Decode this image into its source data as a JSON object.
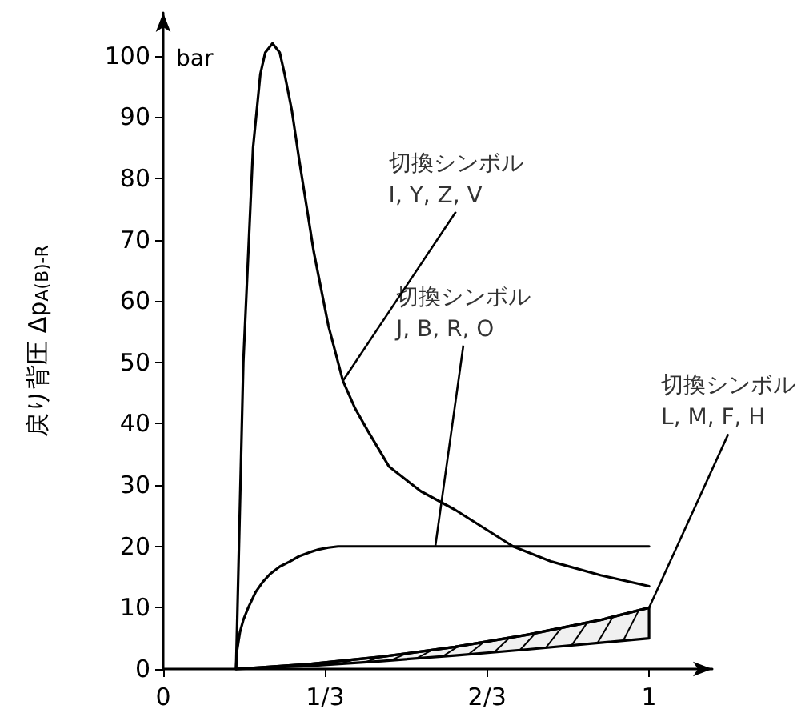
{
  "chart_data": {
    "type": "line",
    "ylabel": "戻り背圧 Δp$_{A(B)-R}$",
    "xlim": [
      0,
      1.13
    ],
    "xticks": [
      0,
      {
        "value": 0.3333,
        "label": "1/3"
      },
      {
        "value": 0.6667,
        "label": "2/3"
      },
      1
    ],
    "ylim": [
      0,
      107
    ],
    "yticks": [
      0,
      10,
      20,
      30,
      40,
      50,
      60,
      70,
      80,
      90,
      100
    ],
    "grid": false,
    "marker": "none",
    "line_style": "solid",
    "series": [
      {
        "color": "#000000",
        "x": [
          0.15,
          0.165,
          0.185,
          0.2,
          0.21,
          0.225,
          0.24,
          0.25,
          0.265,
          0.28,
          0.31,
          0.34,
          0.37,
          0.395,
          0.42,
          0.465,
          0.53,
          0.6,
          0.66,
          0.72,
          0.8,
          0.9,
          1
        ],
        "values": [
          0,
          50,
          85,
          97,
          100.5,
          102,
          100.5,
          97,
          91,
          83,
          68,
          56,
          47,
          42.5,
          39,
          33,
          29,
          26,
          23,
          20,
          17.5,
          15.3,
          13.5
        ]
      },
      {
        "color": "#000000",
        "x": [
          0.15,
          0.152,
          0.158,
          0.165,
          0.175,
          0.19,
          0.205,
          0.22,
          0.24,
          0.26,
          0.28,
          0.3,
          0.32,
          0.34,
          0.36,
          0.38,
          1
        ],
        "values": [
          0,
          3,
          6,
          8,
          10,
          12.5,
          14.2,
          15.5,
          16.7,
          17.5,
          18.4,
          19,
          19.5,
          19.8,
          20,
          20,
          20
        ]
      },
      {
        "color": "#000000",
        "x": [
          0.15,
          0.3,
          0.45,
          0.6,
          0.75,
          0.9,
          1
        ],
        "values": [
          0,
          0.8,
          2,
          3.6,
          5.6,
          8,
          10
        ],
        "upper": [
          0,
          0.8,
          2,
          3.6,
          5.6,
          8,
          10
        ],
        "lower": [
          0,
          0.5,
          1.3,
          2.2,
          3.2,
          4.3,
          5
        ]
      }
    ],
    "annotations": [
      "bar",
      {
        "text": "切換シンボル\nI, Y, Z, V",
        "x": 0.37,
        "y": 47
      },
      {
        "text": "切換シンボル\nJ, B, R, O",
        "x": 0.56,
        "y": 20
      },
      {
        "text": "切換シンボル\nL, M, F, H",
        "x": 1,
        "y": 10
      }
    ]
  }
}
